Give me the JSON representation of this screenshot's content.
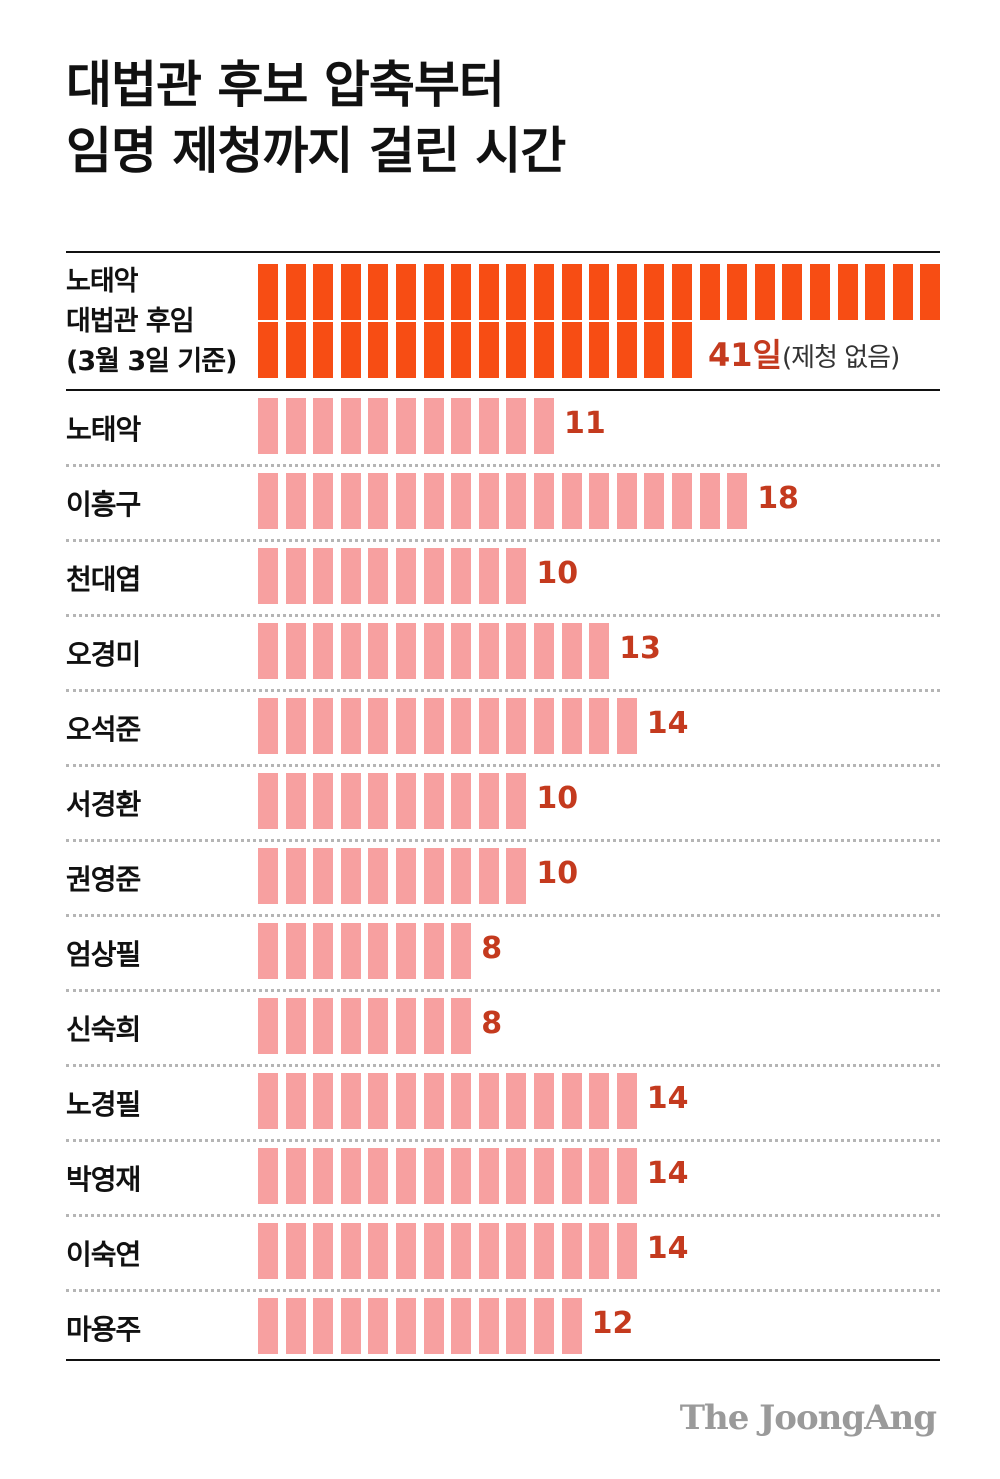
{
  "title_lines": [
    "대법관 후보 압축부터",
    "임명 제청까지 걸린 시간"
  ],
  "chart_data": {
    "type": "bar",
    "title": "대법관 후보 압축부터 임명 제청까지 걸린 시간",
    "special": {
      "label_lines": [
        "노태악",
        "대법관 후임",
        "(3월 3일 기준)"
      ],
      "value": 41,
      "value_text": "41일",
      "note": "(제청 없음)",
      "color": "#f74d14"
    },
    "categories": [
      "노태악",
      "이흥구",
      "천대엽",
      "오경미",
      "오석준",
      "서경환",
      "권영준",
      "엄상필",
      "신숙희",
      "노경필",
      "박영재",
      "이숙연",
      "마용주"
    ],
    "values": [
      11,
      18,
      10,
      13,
      14,
      10,
      10,
      8,
      8,
      14,
      14,
      14,
      12
    ],
    "value_labels": [
      "11",
      "18",
      "10",
      "13",
      "14",
      "10",
      "10",
      "8",
      "8",
      "14",
      "14",
      "14",
      "12"
    ],
    "colors": {
      "bar": "#f7a0a0",
      "highlight": "#f74d14",
      "value_text": "#c43a1e"
    }
  },
  "brand": "The JoongAng"
}
